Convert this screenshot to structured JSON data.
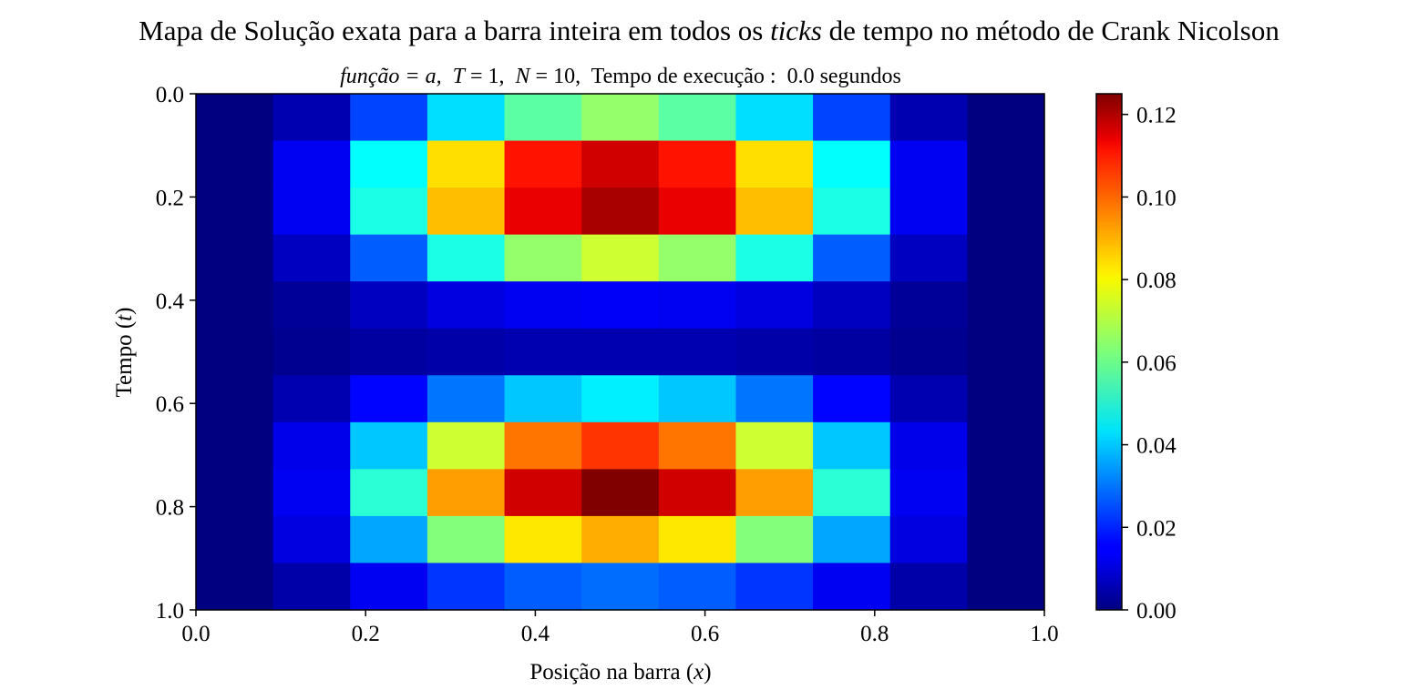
{
  "chart_data": {
    "type": "heatmap",
    "title": "Mapa de Solução exata para a barra inteira em todos os ticks de tempo no método de Crank Nicolson",
    "title_parts": {
      "before": "Mapa de Solução exata para a barra inteira em todos os ",
      "italic": "ticks",
      "after": " de tempo no método de Crank Nicolson"
    },
    "subtitle": "função = a,  T = 1,  N = 10,  Tempo de execução :  0.0 segundos",
    "subtitle_parts": {
      "func_name": "função",
      "func_value": "= a,",
      "T_name": "T",
      "T_value": "= 1,",
      "N_name": "N",
      "N_value": "= 10,",
      "exec_label": "Tempo de execução :",
      "exec_value": "0.0 segundos"
    },
    "xlabel": "Posição na barra (x)",
    "xlabel_parts": {
      "text": "Posição na barra (",
      "var": "x",
      "close": ")"
    },
    "ylabel": "Tempo (t)",
    "ylabel_parts": {
      "text": "Tempo (",
      "var": "t",
      "close": ")"
    },
    "x_range": [
      0.0,
      1.0
    ],
    "y_range": [
      0.0,
      1.0
    ],
    "y_inverted": true,
    "x_ticks": [
      "0.0",
      "0.2",
      "0.4",
      "0.6",
      "0.8",
      "1.0"
    ],
    "y_ticks": [
      "0.0",
      "0.2",
      "0.4",
      "0.6",
      "0.8",
      "1.0"
    ],
    "colormap": "jet",
    "colorbar": {
      "range": [
        0.0,
        0.125
      ],
      "ticks": [
        "0.00",
        "0.02",
        "0.04",
        "0.06",
        "0.08",
        "0.10",
        "0.12"
      ]
    },
    "grid": false,
    "values": [
      [
        0.0,
        0.006,
        0.024,
        0.043,
        0.058,
        0.065,
        0.058,
        0.043,
        0.024,
        0.006,
        0.0
      ],
      [
        0.0,
        0.014,
        0.047,
        0.082,
        0.107,
        0.115,
        0.107,
        0.082,
        0.047,
        0.014,
        0.0
      ],
      [
        0.0,
        0.014,
        0.05,
        0.086,
        0.112,
        0.12,
        0.112,
        0.086,
        0.05,
        0.014,
        0.0
      ],
      [
        0.0,
        0.008,
        0.027,
        0.05,
        0.065,
        0.072,
        0.065,
        0.05,
        0.027,
        0.008,
        0.0
      ],
      [
        0.0,
        0.003,
        0.008,
        0.012,
        0.014,
        0.015,
        0.014,
        0.012,
        0.008,
        0.003,
        0.0
      ],
      [
        0.0,
        0.002,
        0.004,
        0.005,
        0.006,
        0.006,
        0.006,
        0.005,
        0.004,
        0.002,
        0.0
      ],
      [
        0.0,
        0.006,
        0.016,
        0.03,
        0.04,
        0.045,
        0.04,
        0.03,
        0.016,
        0.006,
        0.0
      ],
      [
        0.0,
        0.013,
        0.04,
        0.072,
        0.095,
        0.103,
        0.095,
        0.072,
        0.04,
        0.013,
        0.0
      ],
      [
        0.0,
        0.014,
        0.052,
        0.09,
        0.115,
        0.125,
        0.115,
        0.09,
        0.052,
        0.014,
        0.0
      ],
      [
        0.0,
        0.012,
        0.036,
        0.063,
        0.081,
        0.088,
        0.081,
        0.063,
        0.036,
        0.012,
        0.0
      ],
      [
        0.0,
        0.005,
        0.014,
        0.022,
        0.027,
        0.029,
        0.027,
        0.022,
        0.014,
        0.005,
        0.0
      ]
    ]
  }
}
